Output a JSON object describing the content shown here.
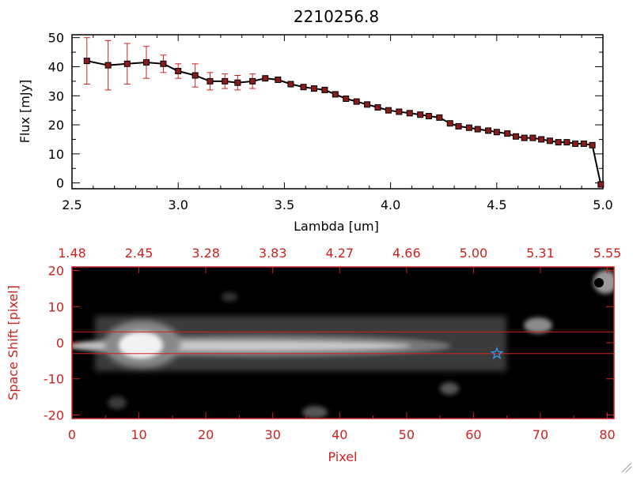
{
  "chart_data": [
    {
      "type": "line",
      "title": "2210256.8",
      "xlabel": "Lambda [um]",
      "ylabel": "Flux [mJy]",
      "xlim": [
        2.5,
        5.0
      ],
      "ylim": [
        -2,
        51
      ],
      "xticks": [
        2.5,
        3.0,
        3.5,
        4.0,
        4.5,
        5.0
      ],
      "xtick_labels": [
        "2.5",
        "3.0",
        "3.5",
        "4.0",
        "4.5",
        "5.0"
      ],
      "yticks": [
        0,
        10,
        20,
        30,
        40,
        50
      ],
      "ytick_labels": [
        "0",
        "10",
        "20",
        "30",
        "40",
        "50"
      ],
      "grid": false,
      "colors": {
        "line": "#000000",
        "marker": "#8b1a1a",
        "errorbar": "#cc2222",
        "axis": "#000000"
      },
      "series": [
        {
          "x": [
            2.57,
            2.67,
            2.76,
            2.85,
            2.93,
            3.0,
            3.08,
            3.15,
            3.22,
            3.28,
            3.35,
            3.41,
            3.47,
            3.53,
            3.59,
            3.64,
            3.69,
            3.74,
            3.79,
            3.84,
            3.89,
            3.94,
            3.99,
            4.04,
            4.09,
            4.14,
            4.18,
            4.23,
            4.28,
            4.32,
            4.37,
            4.41,
            4.46,
            4.5,
            4.55,
            4.59,
            4.63,
            4.67,
            4.71,
            4.75,
            4.79,
            4.83,
            4.87,
            4.91,
            4.95,
            4.99
          ],
          "values": [
            42,
            40.5,
            41,
            41.5,
            41,
            38.5,
            37,
            35,
            35,
            34.5,
            35,
            36,
            35.5,
            34,
            33,
            32.5,
            32,
            30.5,
            29,
            28,
            27,
            26,
            25,
            24.5,
            24,
            23.5,
            23,
            22.5,
            20.5,
            19.5,
            19,
            18.5,
            18,
            17.5,
            17,
            16,
            15.5,
            15.5,
            15,
            14.5,
            14,
            14,
            13.5,
            13.5,
            13,
            -0.5
          ],
          "errors": [
            8,
            8.5,
            7,
            5.5,
            3,
            2.5,
            4,
            3,
            2.5,
            2.5,
            2.5,
            1.2,
            1,
            1,
            0.8,
            0.8,
            0.8,
            0.8,
            0.8,
            0.8,
            0.8,
            0.8,
            0.8,
            0.8,
            0.8,
            0.8,
            0.8,
            0.8,
            0.8,
            0.8,
            0.8,
            0.8,
            0.8,
            0.8,
            0.8,
            0.8,
            0.8,
            0.8,
            0.8,
            0.8,
            0.8,
            0.8,
            0.8,
            0.8,
            1,
            1
          ]
        }
      ]
    },
    {
      "type": "heatmap",
      "xlabel": "Pixel",
      "ylabel": "Space Shift [pixel]",
      "xlim": [
        0,
        81
      ],
      "ylim": [
        -21,
        21
      ],
      "xticks": [
        0,
        10,
        20,
        30,
        40,
        50,
        60,
        70,
        80
      ],
      "xtick_labels": [
        "0",
        "10",
        "20",
        "30",
        "40",
        "50",
        "60",
        "70",
        "80"
      ],
      "yticks": [
        -20,
        -10,
        0,
        10,
        20
      ],
      "ytick_labels": [
        "-20",
        "-10",
        "0",
        "10",
        "20"
      ],
      "top_tick_labels": [
        "1.48",
        "2.45",
        "3.28",
        "3.83",
        "4.27",
        "4.66",
        "5.00",
        "5.31",
        "5.55"
      ],
      "extraction_lines": [
        3,
        -3
      ],
      "marker": {
        "shape": "star",
        "x": 63.5,
        "y": -3
      },
      "grid": false,
      "colors": {
        "axis": "#cc2222",
        "line": "#cc2222",
        "star": "#3a8fe0"
      }
    }
  ]
}
